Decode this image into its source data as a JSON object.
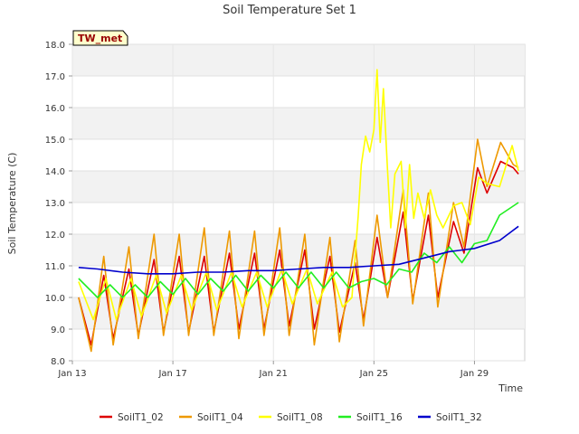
{
  "chart_data": {
    "type": "line",
    "title": "Soil Temperature Set 1",
    "xlabel": "Time",
    "ylabel": "Soil Temperature (C)",
    "badge": "TW_met",
    "x_unit": "date",
    "x_range": [
      "2024-01-13T00:00",
      "2024-01-31T00:00"
    ],
    "ylim": [
      8.0,
      18.0
    ],
    "yticks": [
      "8.0",
      "9.0",
      "10.0",
      "11.0",
      "12.0",
      "13.0",
      "14.0",
      "15.0",
      "16.0",
      "17.0",
      "18.0"
    ],
    "xticks": [
      {
        "label": "Jan 13",
        "date": "2024-01-13"
      },
      {
        "label": "Jan 17",
        "date": "2024-01-17"
      },
      {
        "label": "Jan 21",
        "date": "2024-01-21"
      },
      {
        "label": "Jan 25",
        "date": "2024-01-25"
      },
      {
        "label": "Jan 29",
        "date": "2024-01-29"
      }
    ],
    "grid": true,
    "legend_position": "bottom",
    "series": [
      {
        "name": "SoilT1_02",
        "color": "#dd0000",
        "x": [
          "2024-01-13T06:00",
          "2024-01-13T18:00",
          "2024-01-14T06:00",
          "2024-01-14T15:00",
          "2024-01-15T06:00",
          "2024-01-15T15:00",
          "2024-01-16T06:00",
          "2024-01-16T15:00",
          "2024-01-17T06:00",
          "2024-01-17T15:00",
          "2024-01-18T06:00",
          "2024-01-18T15:00",
          "2024-01-19T06:00",
          "2024-01-19T15:00",
          "2024-01-20T06:00",
          "2024-01-20T15:00",
          "2024-01-21T06:00",
          "2024-01-21T15:00",
          "2024-01-22T06:00",
          "2024-01-22T15:00",
          "2024-01-23T06:00",
          "2024-01-23T15:00",
          "2024-01-24T06:00",
          "2024-01-24T14:00",
          "2024-01-25T03:00",
          "2024-01-25T13:00",
          "2024-01-26T04:00",
          "2024-01-26T13:00",
          "2024-01-27T04:00",
          "2024-01-27T13:00",
          "2024-01-28T04:00",
          "2024-01-28T14:00",
          "2024-01-29T03:00",
          "2024-01-29T12:00",
          "2024-01-30T01:00",
          "2024-01-30T13:00",
          "2024-01-30T18:00"
        ],
        "y": [
          10.0,
          8.5,
          10.7,
          8.7,
          10.9,
          8.8,
          11.2,
          8.9,
          11.3,
          8.9,
          11.3,
          8.9,
          11.4,
          9.0,
          11.4,
          9.0,
          11.5,
          9.1,
          11.5,
          9.0,
          11.3,
          8.9,
          11.1,
          9.3,
          11.9,
          10.0,
          12.7,
          9.9,
          12.6,
          10.0,
          12.4,
          11.4,
          14.1,
          13.3,
          14.3,
          14.1,
          13.9
        ]
      },
      {
        "name": "SoilT1_04",
        "color": "#ee9900",
        "x": [
          "2024-01-13T06:00",
          "2024-01-13T18:00",
          "2024-01-14T06:00",
          "2024-01-14T15:00",
          "2024-01-15T06:00",
          "2024-01-15T15:00",
          "2024-01-16T06:00",
          "2024-01-16T15:00",
          "2024-01-17T06:00",
          "2024-01-17T15:00",
          "2024-01-18T06:00",
          "2024-01-18T15:00",
          "2024-01-19T06:00",
          "2024-01-19T15:00",
          "2024-01-20T06:00",
          "2024-01-20T15:00",
          "2024-01-21T06:00",
          "2024-01-21T15:00",
          "2024-01-22T06:00",
          "2024-01-22T15:00",
          "2024-01-23T06:00",
          "2024-01-23T15:00",
          "2024-01-24T06:00",
          "2024-01-24T14:00",
          "2024-01-25T03:00",
          "2024-01-25T13:00",
          "2024-01-26T04:00",
          "2024-01-26T13:00",
          "2024-01-27T04:00",
          "2024-01-27T13:00",
          "2024-01-28T04:00",
          "2024-01-28T14:00",
          "2024-01-29T03:00",
          "2024-01-29T12:00",
          "2024-01-30T01:00",
          "2024-01-30T13:00",
          "2024-01-30T18:00"
        ],
        "y": [
          10.0,
          8.3,
          11.3,
          8.5,
          11.6,
          8.7,
          12.0,
          8.8,
          12.0,
          8.8,
          12.2,
          8.8,
          12.1,
          8.7,
          12.1,
          8.8,
          12.2,
          8.8,
          12.0,
          8.5,
          11.9,
          8.6,
          11.8,
          9.1,
          12.6,
          10.0,
          13.4,
          9.8,
          13.3,
          9.7,
          13.0,
          11.6,
          15.0,
          13.5,
          14.9,
          14.2,
          14.1
        ]
      },
      {
        "name": "SoilT1_08",
        "color": "#ffff00",
        "x": [
          "2024-01-13T06:00",
          "2024-01-13T20:00",
          "2024-01-14T08:00",
          "2024-01-14T18:00",
          "2024-01-15T08:00",
          "2024-01-15T18:00",
          "2024-01-16T08:00",
          "2024-01-16T18:00",
          "2024-01-17T08:00",
          "2024-01-17T18:00",
          "2024-01-18T08:00",
          "2024-01-18T18:00",
          "2024-01-19T08:00",
          "2024-01-19T18:00",
          "2024-01-20T08:00",
          "2024-01-20T18:00",
          "2024-01-21T08:00",
          "2024-01-21T18:00",
          "2024-01-22T08:00",
          "2024-01-22T18:00",
          "2024-01-23T08:00",
          "2024-01-23T18:00",
          "2024-01-24T03:00",
          "2024-01-24T09:00",
          "2024-01-24T12:00",
          "2024-01-24T16:00",
          "2024-01-24T20:00",
          "2024-01-25T00:00",
          "2024-01-25T03:00",
          "2024-01-25T06:00",
          "2024-01-25T09:00",
          "2024-01-25T13:00",
          "2024-01-25T16:00",
          "2024-01-25T20:00",
          "2024-01-26T02:00",
          "2024-01-26T06:00",
          "2024-01-26T10:00",
          "2024-01-26T14:00",
          "2024-01-26T18:00",
          "2024-01-27T00:00",
          "2024-01-27T06:00",
          "2024-01-27T12:00",
          "2024-01-27T18:00",
          "2024-01-28T04:00",
          "2024-01-28T12:00",
          "2024-01-28T20:00",
          "2024-01-29T04:00",
          "2024-01-29T12:00",
          "2024-01-30T00:00",
          "2024-01-30T12:00",
          "2024-01-30T18:00"
        ],
        "y": [
          10.5,
          9.3,
          10.6,
          9.3,
          10.6,
          9.4,
          10.7,
          9.5,
          10.7,
          9.6,
          10.8,
          9.6,
          10.8,
          9.7,
          10.8,
          9.7,
          10.9,
          9.8,
          10.9,
          9.8,
          10.8,
          9.7,
          10.0,
          12.6,
          14.2,
          15.1,
          14.6,
          15.3,
          17.2,
          14.9,
          16.6,
          14.0,
          12.2,
          13.9,
          14.3,
          12.2,
          14.2,
          12.5,
          13.3,
          12.5,
          13.4,
          12.6,
          12.2,
          12.9,
          13.0,
          12.3,
          13.8,
          13.6,
          13.5,
          14.8,
          14.0
        ]
      },
      {
        "name": "SoilT1_16",
        "color": "#22ee22",
        "x": [
          "2024-01-13T06:00",
          "2024-01-14T00:00",
          "2024-01-14T12:00",
          "2024-01-15T00:00",
          "2024-01-15T12:00",
          "2024-01-16T00:00",
          "2024-01-16T12:00",
          "2024-01-17T00:00",
          "2024-01-17T12:00",
          "2024-01-18T00:00",
          "2024-01-18T12:00",
          "2024-01-19T00:00",
          "2024-01-19T12:00",
          "2024-01-20T00:00",
          "2024-01-20T12:00",
          "2024-01-21T00:00",
          "2024-01-21T12:00",
          "2024-01-22T00:00",
          "2024-01-22T12:00",
          "2024-01-23T00:00",
          "2024-01-23T12:00",
          "2024-01-24T00:00",
          "2024-01-24T12:00",
          "2024-01-25T00:00",
          "2024-01-25T12:00",
          "2024-01-26T00:00",
          "2024-01-26T12:00",
          "2024-01-27T00:00",
          "2024-01-27T12:00",
          "2024-01-28T00:00",
          "2024-01-28T12:00",
          "2024-01-29T00:00",
          "2024-01-29T12:00",
          "2024-01-30T00:00",
          "2024-01-30T18:00"
        ],
        "y": [
          10.6,
          10.0,
          10.4,
          10.0,
          10.4,
          10.0,
          10.5,
          10.1,
          10.6,
          10.1,
          10.6,
          10.2,
          10.7,
          10.2,
          10.7,
          10.3,
          10.8,
          10.3,
          10.8,
          10.3,
          10.8,
          10.3,
          10.5,
          10.6,
          10.4,
          10.9,
          10.8,
          11.4,
          11.1,
          11.6,
          11.1,
          11.7,
          11.8,
          12.6,
          13.0
        ]
      },
      {
        "name": "SoilT1_32",
        "color": "#0000cc",
        "x": [
          "2024-01-13T06:00",
          "2024-01-14T00:00",
          "2024-01-15T00:00",
          "2024-01-16T00:00",
          "2024-01-17T00:00",
          "2024-01-18T00:00",
          "2024-01-19T00:00",
          "2024-01-20T00:00",
          "2024-01-21T00:00",
          "2024-01-22T00:00",
          "2024-01-23T00:00",
          "2024-01-24T00:00",
          "2024-01-25T00:00",
          "2024-01-26T00:00",
          "2024-01-27T00:00",
          "2024-01-28T00:00",
          "2024-01-29T00:00",
          "2024-01-30T00:00",
          "2024-01-30T18:00"
        ],
        "y": [
          10.95,
          10.9,
          10.8,
          10.75,
          10.75,
          10.8,
          10.8,
          10.85,
          10.85,
          10.9,
          10.95,
          10.95,
          11.0,
          11.05,
          11.25,
          11.45,
          11.55,
          11.8,
          12.25
        ]
      }
    ]
  }
}
